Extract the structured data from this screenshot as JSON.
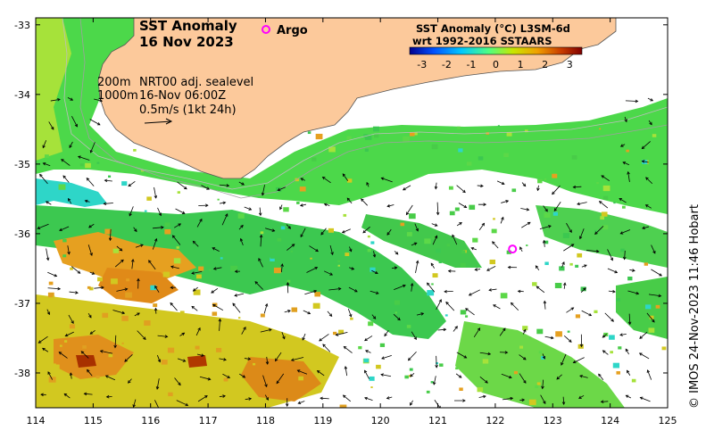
{
  "map": {
    "title_line1": "SST Anomaly",
    "title_line2": "16 Nov 2023",
    "legend_argo": "Argo",
    "depth_200": "200m",
    "depth_1000": "1000m",
    "vel_title": "NRT00 adj. sealevel",
    "vel_time": "16-Nov 06:00Z",
    "vel_scale": "0.5m/s (1kt 24h)",
    "colorbar_title": "SST Anomaly (°C) L3SM-6d",
    "colorbar_subtitle": "wrt 1992-2016 SSTAARS",
    "colorbar_ticks": [
      "-3",
      "-2",
      "-1",
      "0",
      "1",
      "2",
      "3"
    ],
    "x_ticks": [
      "114",
      "115",
      "116",
      "117",
      "118",
      "119",
      "120",
      "121",
      "122",
      "123",
      "124",
      "125"
    ],
    "y_ticks": [
      "-33",
      "-34",
      "-35",
      "-36",
      "-37",
      "-38"
    ],
    "credit": "© IMOS 24-Nov-2023 11:46 Hobart",
    "colors": {
      "land": "#fcc99b",
      "argo": "#ff00ff",
      "ramp": [
        "#00008f",
        "#0050ff",
        "#00c8ff",
        "#50ff80",
        "#c8e600",
        "#f0a000",
        "#c83c00",
        "#800000"
      ]
    },
    "argo_float": {
      "lon": 122.3,
      "lat": -36.22
    }
  }
}
